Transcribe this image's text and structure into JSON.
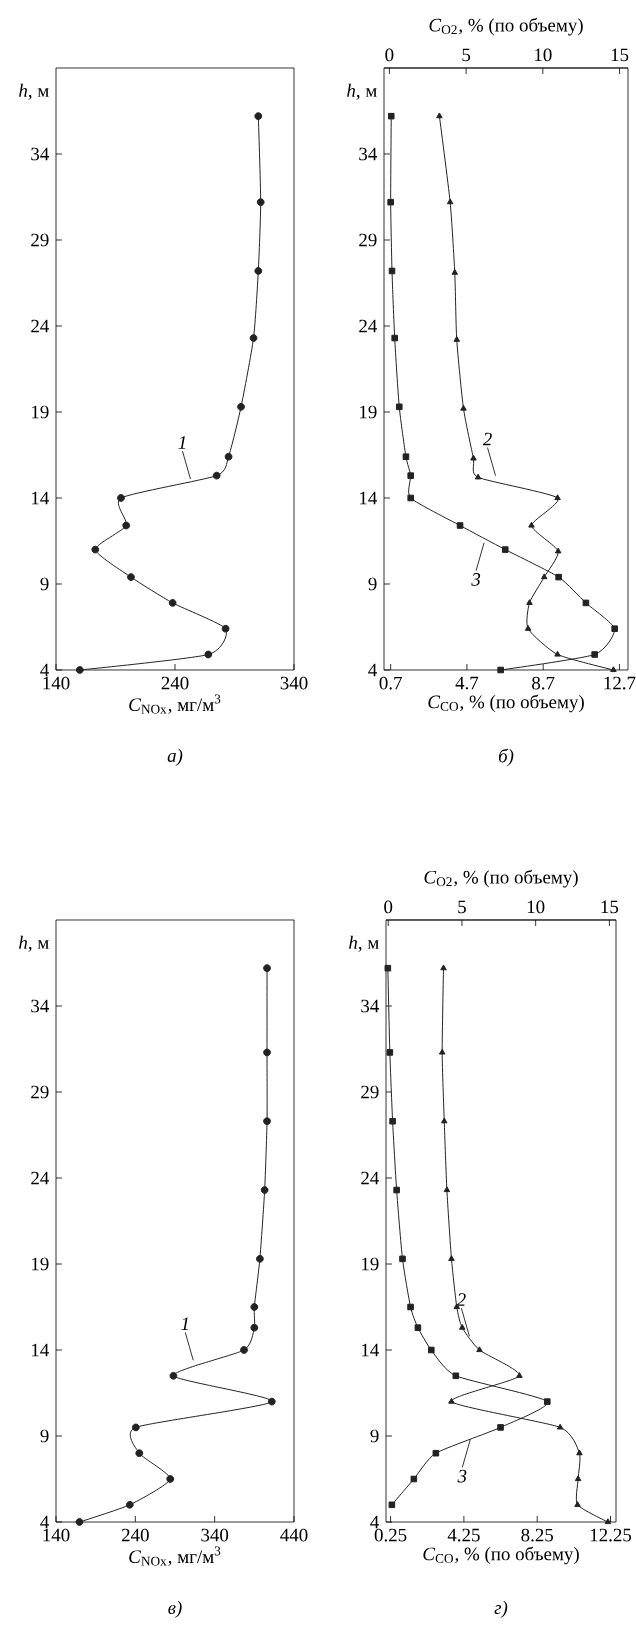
{
  "chart_data": [
    {
      "type": "line",
      "title": "а)",
      "xlabel": "*C*$_{NOx}$, мг/м$^{3}$",
      "ylabel": "*h*, м",
      "xlim": [
        140,
        340
      ],
      "xticks": [
        140,
        240,
        340
      ],
      "ylim": [
        4,
        39
      ],
      "yticks": [
        4,
        9,
        14,
        19,
        24,
        29,
        34
      ],
      "series": [
        {
          "color": "#222222",
          "marker": "circle",
          "x": [
            310,
            312,
            310,
            306,
            295.5,
            285,
            275,
            194.6,
            199,
            173,
            203,
            238,
            282.5,
            268,
            160
          ],
          "values": [
            36.2,
            31.2,
            27.2,
            23.3,
            19.3,
            16.4,
            15.3,
            14.0,
            12.4,
            11.0,
            9.4,
            7.9,
            6.4,
            4.9,
            4.0
          ]
        }
      ],
      "annotations": [
        {
          "text": "1",
          "x": 253,
          "y": 15.1
        }
      ]
    },
    {
      "type": "line",
      "title": "б)",
      "xlabel": "*C*$_{CO}$, % (по объему)",
      "x2label": "*C*$_{O2}$, % (по объему)",
      "ylabel": "*h*, м",
      "xlim": [
        0.35,
        13.15
      ],
      "xticks": [
        0.7,
        4.7,
        8.7,
        12.7
      ],
      "x2lim": [
        -0.35,
        15.55
      ],
      "x2ticks": [
        0,
        5,
        10,
        15
      ],
      "ylim": [
        4,
        39
      ],
      "yticks": [
        4,
        9,
        14,
        19,
        24,
        29,
        34
      ],
      "series": [
        {
          "color": "#222222",
          "marker": "triangle",
          "axis": "x2",
          "x": [
            3.26,
            3.96,
            4.26,
            4.39,
            4.83,
            5.48,
            5.78,
            10.96,
            9.26,
            11.0,
            10.09,
            9.13,
            9.04,
            10.96,
            14.6
          ],
          "values": [
            36.2,
            31.2,
            27.1,
            23.2,
            19.2,
            16.3,
            15.2,
            14.0,
            12.4,
            10.9,
            9.4,
            7.9,
            6.4,
            4.9,
            4.0
          ]
        },
        {
          "color": "#222222",
          "marker": "square",
          "x": [
            0.73,
            0.7,
            0.77,
            0.91,
            1.15,
            1.5,
            1.75,
            1.75,
            4.34,
            6.71,
            9.51,
            10.94,
            12.45,
            11.4,
            6.47
          ],
          "values": [
            36.2,
            31.2,
            27.2,
            23.3,
            19.3,
            16.4,
            15.3,
            14.0,
            12.4,
            11.0,
            9.4,
            7.9,
            6.4,
            4.9,
            4.0
          ]
        }
      ],
      "annotations": [
        {
          "text": "2",
          "x": 6.2,
          "y": 15.3
        },
        {
          "text": "3",
          "x": 5.6,
          "y": 11.4
        }
      ]
    },
    {
      "type": "line",
      "title": "в)",
      "xlabel": "*C*$_{NOx}$, мг/м$^{3}$",
      "ylabel": "*h*, м",
      "xlim": [
        140,
        440
      ],
      "xticks": [
        140,
        240,
        340,
        440
      ],
      "ylim": [
        4,
        39
      ],
      "yticks": [
        4,
        9,
        14,
        19,
        24,
        29,
        34
      ],
      "series": [
        {
          "color": "#222222",
          "marker": "circle",
          "x": [
            406,
            406,
            406,
            403,
            397,
            390,
            390,
            377,
            288,
            412,
            240.6,
            245,
            284,
            233,
            169.6
          ],
          "values": [
            36.2,
            31.3,
            27.3,
            23.3,
            19.3,
            16.5,
            15.3,
            14.0,
            12.5,
            11.0,
            9.5,
            8.0,
            6.5,
            5.0,
            4.0
          ]
        }
      ],
      "annotations": [
        {
          "text": "1",
          "x": 313,
          "y": 13.4
        }
      ]
    },
    {
      "type": "line",
      "title": "г)",
      "xlabel": "*C*$_{CO}$, % (по объему)",
      "x2label": "*C*$_{O2}$, % (по объему)",
      "ylabel": "*h*, м",
      "xlim": [
        0.0,
        12.55
      ],
      "xticks": [
        0.25,
        4.25,
        8.25,
        12.25
      ],
      "x2lim": [
        -0.15,
        15.45
      ],
      "x2ticks": [
        0,
        5,
        10,
        15
      ],
      "ylim": [
        4,
        39
      ],
      "yticks": [
        4,
        9,
        14,
        19,
        24,
        29,
        34
      ],
      "series": [
        {
          "color": "#222222",
          "marker": "triangle",
          "axis": "x2",
          "x": [
            3.75,
            3.66,
            3.8,
            3.98,
            4.29,
            4.65,
            5.02,
            6.19,
            8.9,
            4.29,
            11.66,
            12.97,
            12.88,
            12.84,
            14.9
          ],
          "values": [
            36.2,
            31.3,
            27.3,
            23.3,
            19.3,
            16.5,
            15.3,
            14.0,
            12.5,
            11.0,
            9.5,
            8.0,
            6.5,
            5.0,
            4.0
          ]
        },
        {
          "color": "#222222",
          "marker": "square",
          "x": [
            0.1,
            0.21,
            0.36,
            0.58,
            0.9,
            1.34,
            1.74,
            2.47,
            3.81,
            8.8,
            6.25,
            2.72,
            1.52,
            0.32
          ],
          "values": [
            36.2,
            31.3,
            27.3,
            23.3,
            19.3,
            16.5,
            15.3,
            14.0,
            12.5,
            11.0,
            9.5,
            8.0,
            6.5,
            5.0
          ]
        }
      ],
      "annotations": [
        {
          "text": "2",
          "x": 4.55,
          "y": 14.8
        },
        {
          "text": "3",
          "x": 4.6,
          "y": 8.8
        }
      ]
    }
  ]
}
